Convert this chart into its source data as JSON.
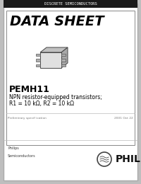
{
  "bg_color": "#ffffff",
  "outer_bg": "#bebebe",
  "border_color": "#000000",
  "top_banner_color": "#1a1a1a",
  "top_banner_text": "DISCRETE SEMICONDUCTORS",
  "top_banner_text_color": "#ffffff",
  "title": "DATA SHEET",
  "title_color": "#000000",
  "part_number": "PEMH11",
  "description_line1": "NPN resistor-equipped transistors;",
  "description_line2": "R1 = 10 kΩ, R2 = 10 kΩ",
  "footer_left": "Preliminary specif ication",
  "footer_right": "2001 Oct 22",
  "philips_label_line1": "Philips",
  "philips_label_line2": "Semiconductors",
  "inner_border_color": "#888888",
  "card_border_color": "#aaaaaa"
}
